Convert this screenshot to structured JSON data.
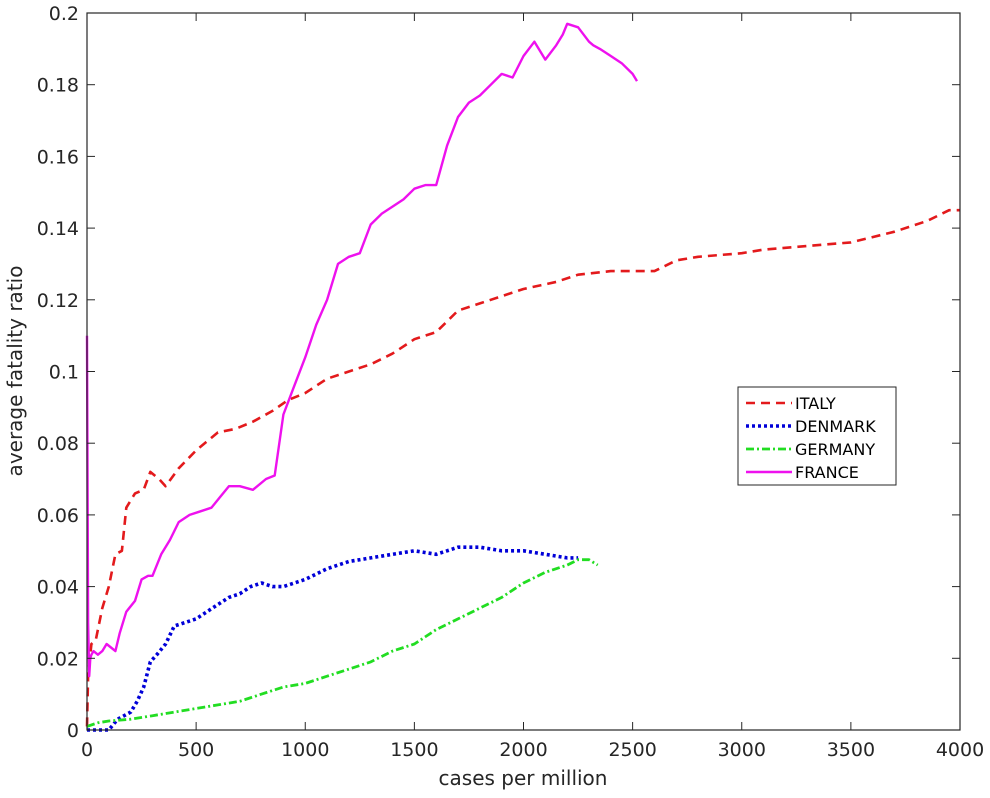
{
  "chart_data": {
    "type": "line",
    "title": "",
    "xlabel": "cases per million",
    "ylabel": "average fatality ratio",
    "xlim": [
      0,
      4000
    ],
    "ylim": [
      0,
      0.2
    ],
    "xticks": [
      0,
      500,
      1000,
      1500,
      2000,
      2500,
      3000,
      3500,
      4000
    ],
    "xtick_labels": [
      "0",
      "500",
      "1000",
      "1500",
      "2000",
      "2500",
      "3000",
      "3500",
      "4000"
    ],
    "yticks": [
      0,
      0.02,
      0.04,
      0.06,
      0.08,
      0.1,
      0.12,
      0.14,
      0.16,
      0.18,
      0.2
    ],
    "ytick_labels": [
      "0",
      "0.02",
      "0.04",
      "0.06",
      "0.08",
      "0.1",
      "0.12",
      "0.14",
      "0.16",
      "0.18",
      "0.2"
    ],
    "grid": false,
    "legend_position": "east",
    "series": [
      {
        "name": "ITALY",
        "color": "#e31a1c",
        "style": "dashed",
        "x": [
          0,
          5,
          20,
          40,
          70,
          100,
          130,
          160,
          180,
          220,
          260,
          290,
          330,
          360,
          420,
          500,
          600,
          680,
          760,
          850,
          920,
          1000,
          1100,
          1200,
          1300,
          1400,
          1500,
          1600,
          1700,
          1800,
          1900,
          2000,
          2150,
          2250,
          2400,
          2500,
          2600,
          2700,
          2800,
          3000,
          3100,
          3300,
          3500,
          3700,
          3850,
          3950,
          4000
        ],
        "y": [
          0.001,
          0.015,
          0.024,
          0.025,
          0.034,
          0.04,
          0.049,
          0.05,
          0.062,
          0.066,
          0.067,
          0.072,
          0.07,
          0.068,
          0.073,
          0.078,
          0.083,
          0.084,
          0.086,
          0.089,
          0.092,
          0.094,
          0.098,
          0.1,
          0.102,
          0.105,
          0.109,
          0.111,
          0.117,
          0.119,
          0.121,
          0.123,
          0.125,
          0.127,
          0.128,
          0.128,
          0.128,
          0.131,
          0.132,
          0.133,
          0.134,
          0.135,
          0.136,
          0.139,
          0.142,
          0.145,
          0.145
        ]
      },
      {
        "name": "DENMARK",
        "color": "#0000d8",
        "style": "dotted",
        "x": [
          0,
          50,
          100,
          140,
          170,
          200,
          230,
          260,
          290,
          320,
          360,
          400,
          450,
          500,
          550,
          600,
          650,
          700,
          750,
          800,
          850,
          900,
          1000,
          1100,
          1200,
          1300,
          1400,
          1500,
          1600,
          1650,
          1700,
          1800,
          1900,
          2000,
          2100,
          2200,
          2250
        ],
        "y": [
          0,
          0,
          0,
          0.003,
          0.004,
          0.005,
          0.008,
          0.012,
          0.019,
          0.021,
          0.024,
          0.029,
          0.03,
          0.031,
          0.033,
          0.035,
          0.037,
          0.038,
          0.04,
          0.041,
          0.04,
          0.04,
          0.042,
          0.045,
          0.047,
          0.048,
          0.049,
          0.05,
          0.049,
          0.05,
          0.051,
          0.051,
          0.05,
          0.05,
          0.049,
          0.048,
          0.048
        ]
      },
      {
        "name": "GERMANY",
        "color": "#22dd22",
        "style": "dash-dot",
        "x": [
          0,
          50,
          100,
          200,
          300,
          400,
          500,
          600,
          700,
          800,
          900,
          1000,
          1100,
          1200,
          1300,
          1400,
          1500,
          1600,
          1700,
          1800,
          1900,
          2000,
          2100,
          2200,
          2250,
          2300,
          2340
        ],
        "y": [
          0.001,
          0.002,
          0.0025,
          0.003,
          0.004,
          0.005,
          0.006,
          0.007,
          0.008,
          0.01,
          0.012,
          0.013,
          0.015,
          0.017,
          0.019,
          0.022,
          0.024,
          0.028,
          0.031,
          0.034,
          0.037,
          0.041,
          0.044,
          0.046,
          0.0475,
          0.0475,
          0.046
        ]
      },
      {
        "name": "FRANCE",
        "color": "#ee11ee",
        "style": "solid",
        "x": [
          0,
          5,
          10,
          15,
          20,
          30,
          50,
          70,
          90,
          110,
          130,
          150,
          180,
          220,
          250,
          280,
          300,
          340,
          380,
          420,
          470,
          520,
          570,
          610,
          650,
          700,
          760,
          820,
          860,
          900,
          950,
          1000,
          1050,
          1100,
          1150,
          1200,
          1250,
          1300,
          1350,
          1400,
          1450,
          1500,
          1550,
          1600,
          1650,
          1700,
          1750,
          1800,
          1850,
          1900,
          1950,
          2000,
          2050,
          2100,
          2150,
          2180,
          2200,
          2250,
          2300,
          2320,
          2350,
          2400,
          2450,
          2500,
          2520
        ],
        "y": [
          0.11,
          0.03,
          0.015,
          0.02,
          0.021,
          0.022,
          0.021,
          0.022,
          0.024,
          0.023,
          0.022,
          0.027,
          0.033,
          0.036,
          0.042,
          0.043,
          0.043,
          0.049,
          0.053,
          0.058,
          0.06,
          0.061,
          0.062,
          0.065,
          0.068,
          0.068,
          0.067,
          0.07,
          0.071,
          0.088,
          0.096,
          0.104,
          0.113,
          0.12,
          0.13,
          0.132,
          0.133,
          0.141,
          0.144,
          0.146,
          0.148,
          0.151,
          0.152,
          0.152,
          0.163,
          0.171,
          0.175,
          0.177,
          0.18,
          0.183,
          0.182,
          0.188,
          0.192,
          0.187,
          0.191,
          0.194,
          0.197,
          0.196,
          0.192,
          0.191,
          0.19,
          0.188,
          0.186,
          0.183,
          0.181
        ]
      }
    ]
  }
}
